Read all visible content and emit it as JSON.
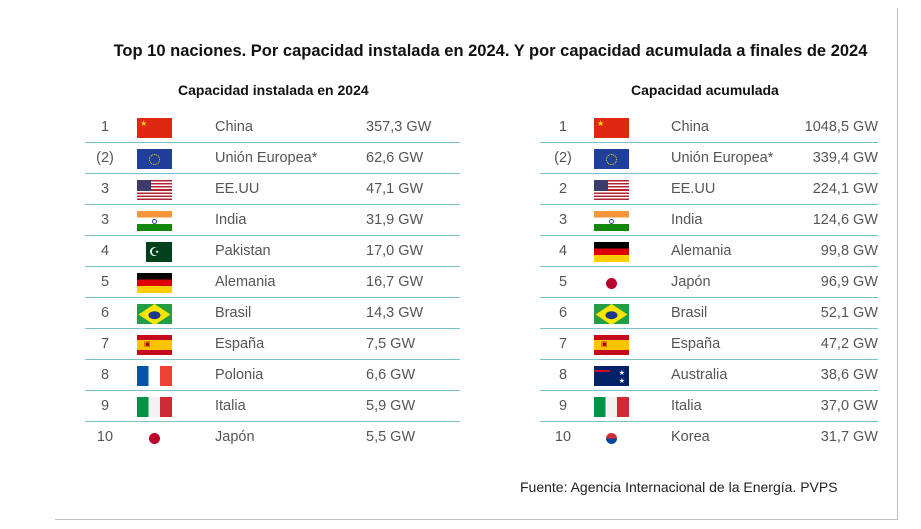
{
  "title": "Top 10 naciones. Por capacidad instalada en 2024. Y por capacidad acumulada a finales de 2024",
  "installed": {
    "heading": "Capacidad instalada en 2024",
    "rows": [
      {
        "rank": "1",
        "flag": "china",
        "country": "China",
        "value": "357,3 GW"
      },
      {
        "rank": "(2)",
        "flag": "eu",
        "country": "Unión Europea*",
        "value": "62,6 GW"
      },
      {
        "rank": "3",
        "flag": "usa",
        "country": "EE.UU",
        "value": "47,1 GW"
      },
      {
        "rank": "3",
        "flag": "india",
        "country": "India",
        "value": "31,9 GW"
      },
      {
        "rank": "4",
        "flag": "pakistan",
        "country": "Pakistan",
        "value": "17,0 GW"
      },
      {
        "rank": "5",
        "flag": "germany",
        "country": "Alemania",
        "value": "16,7 GW"
      },
      {
        "rank": "6",
        "flag": "brazil",
        "country": "Brasil",
        "value": "14,3 GW"
      },
      {
        "rank": "7",
        "flag": "spain",
        "country": "España",
        "value": "7,5 GW"
      },
      {
        "rank": "8",
        "flag": "france",
        "country": "Polonia",
        "value": "6,6 GW"
      },
      {
        "rank": "9",
        "flag": "italy",
        "country": "Italia",
        "value": "5,9 GW"
      },
      {
        "rank": "10",
        "flag": "japan",
        "country": "Japón",
        "value": "5,5 GW"
      }
    ]
  },
  "cumulative": {
    "heading": "Capacidad acumulada",
    "rows": [
      {
        "rank": "1",
        "flag": "china",
        "country": "China",
        "value": "1048,5 GW"
      },
      {
        "rank": "(2)",
        "flag": "eu",
        "country": "Unión Europea*",
        "value": "339,4 GW"
      },
      {
        "rank": "2",
        "flag": "usa",
        "country": "EE.UU",
        "value": "224,1 GW"
      },
      {
        "rank": "3",
        "flag": "india",
        "country": "India",
        "value": "124,6 GW"
      },
      {
        "rank": "4",
        "flag": "germany",
        "country": "Alemania",
        "value": "99,8 GW"
      },
      {
        "rank": "5",
        "flag": "japan",
        "country": "Japón",
        "value": "96,9 GW"
      },
      {
        "rank": "6",
        "flag": "brazil",
        "country": "Brasil",
        "value": "52,1 GW"
      },
      {
        "rank": "7",
        "flag": "spain",
        "country": "España",
        "value": "47,2 GW"
      },
      {
        "rank": "8",
        "flag": "australia",
        "country": "Australia",
        "value": "38,6 GW"
      },
      {
        "rank": "9",
        "flag": "italy",
        "country": "Italia",
        "value": "37,0 GW"
      },
      {
        "rank": "10",
        "flag": "korea",
        "country": "Korea",
        "value": "31,7 GW"
      }
    ]
  },
  "source": "Fuente: Agencia Internacional de la Energía. PVPS"
}
